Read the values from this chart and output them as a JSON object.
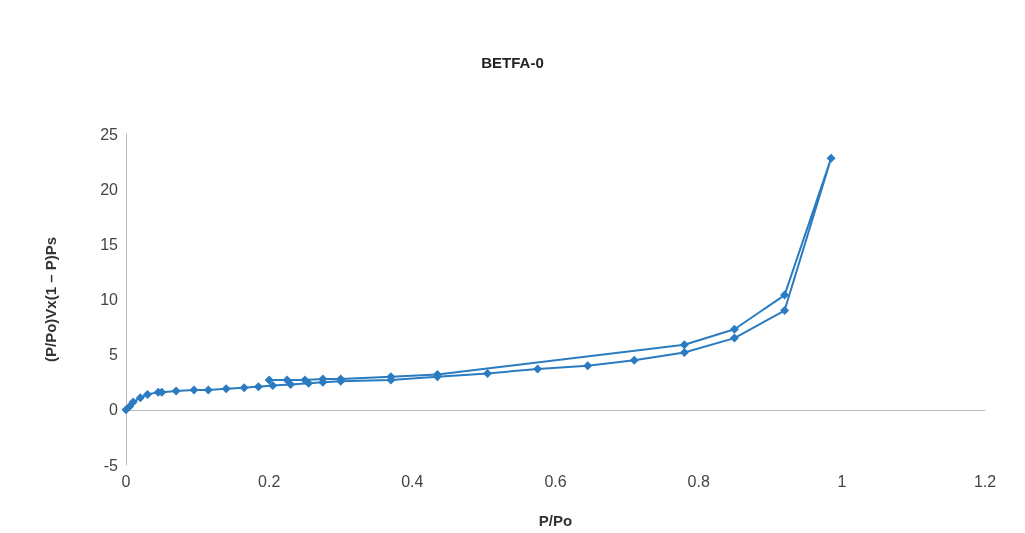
{
  "chart_data": {
    "type": "line",
    "title": "BETFA-0",
    "xlabel": "P/Po",
    "ylabel": "(P/Po)Vx(1 – P)Ps",
    "series": [
      {
        "color": "#2a7bc0",
        "x": [
          0,
          0.005,
          0.01,
          0.02,
          0.03,
          0.045,
          0.05,
          0.07,
          0.095,
          0.115,
          0.14,
          0.165,
          0.185,
          0.205,
          0.23,
          0.255,
          0.275,
          0.3,
          0.37,
          0.435,
          0.505,
          0.575,
          0.645,
          0.71,
          0.78,
          0.85,
          0.92,
          0.985,
          0.92,
          0.85,
          0.78,
          0.435,
          0.37,
          0.3,
          0.275,
          0.25,
          0.225,
          0.2
        ],
        "values": [
          0,
          0.3,
          0.7,
          1.1,
          1.4,
          1.6,
          1.6,
          1.7,
          1.8,
          1.8,
          1.9,
          2,
          2.1,
          2.2,
          2.3,
          2.4,
          2.5,
          2.6,
          2.7,
          3,
          3.3,
          3.7,
          4,
          4.5,
          5.2,
          6.5,
          9,
          22.8,
          10.4,
          7.3,
          5.9,
          3.2,
          3,
          2.8,
          2.8,
          2.7,
          2.7,
          2.7
        ]
      }
    ],
    "xlim": [
      0,
      1.2
    ],
    "xticks": [
      0,
      0.2,
      0.4,
      0.6,
      0.8,
      1,
      1.2
    ],
    "ylim": [
      -5,
      25
    ],
    "yticks": [
      -5,
      0,
      5,
      10,
      15,
      20,
      25
    ],
    "marker": "diamond",
    "line_style": "solid"
  }
}
